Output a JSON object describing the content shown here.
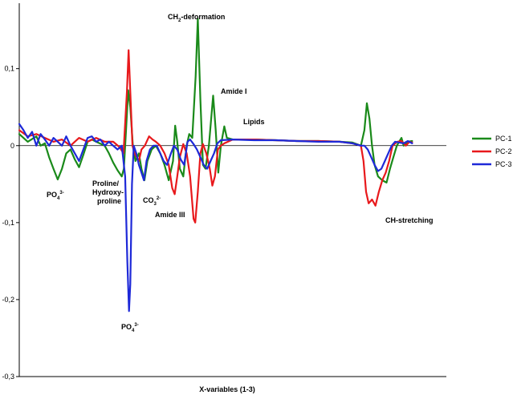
{
  "chart_data": {
    "type": "line",
    "xlabel": "X-variables (1-3)",
    "ylabel": "",
    "title": "",
    "ylim": [
      -0.3,
      0.18
    ],
    "yticks": [
      {
        "value": 0.1,
        "label": "0,1"
      },
      {
        "value": 0,
        "label": "0"
      },
      {
        "value": -0.1,
        "label": "-0,1"
      },
      {
        "value": -0.2,
        "label": "-0,2"
      },
      {
        "value": -0.3,
        "label": "-0,3"
      }
    ],
    "xlim": [
      0,
      100
    ],
    "grid": false,
    "legend_position": "right",
    "series": [
      {
        "name": "PC-1",
        "color": "#1a8a1a",
        "points": [
          [
            0,
            0.015
          ],
          [
            2,
            0.005
          ],
          [
            4,
            0.012
          ],
          [
            5,
            0.0
          ],
          [
            6,
            0.003
          ],
          [
            7,
            -0.015
          ],
          [
            8,
            -0.03
          ],
          [
            9,
            -0.044
          ],
          [
            10,
            -0.03
          ],
          [
            11,
            -0.01
          ],
          [
            12,
            -0.005
          ],
          [
            13,
            -0.018
          ],
          [
            14,
            -0.028
          ],
          [
            15,
            -0.012
          ],
          [
            16,
            0.005
          ],
          [
            17,
            0.008
          ],
          [
            18,
            0.005
          ],
          [
            20,
            0.0
          ],
          [
            21,
            -0.01
          ],
          [
            22,
            -0.022
          ],
          [
            23,
            -0.032
          ],
          [
            24,
            -0.04
          ],
          [
            24.5,
            -0.03
          ],
          [
            25,
            0.02
          ],
          [
            25.5,
            0.072
          ],
          [
            26,
            0.05
          ],
          [
            26.6,
            0.0
          ],
          [
            27.2,
            -0.02
          ],
          [
            28,
            -0.01
          ],
          [
            28.6,
            -0.03
          ],
          [
            29.3,
            -0.045
          ],
          [
            30,
            -0.02
          ],
          [
            31,
            -0.005
          ],
          [
            32,
            0.0
          ],
          [
            33,
            -0.01
          ],
          [
            34,
            -0.025
          ],
          [
            35,
            -0.045
          ],
          [
            36,
            -0.02
          ],
          [
            36.5,
            0.026
          ],
          [
            37,
            0.005
          ],
          [
            37.6,
            -0.03
          ],
          [
            38.4,
            -0.04
          ],
          [
            39.2,
            0.0
          ],
          [
            39.8,
            0.015
          ],
          [
            40.5,
            0.01
          ],
          [
            41.3,
            0.09
          ],
          [
            41.8,
            0.165
          ],
          [
            42.4,
            0.06
          ],
          [
            43,
            -0.025
          ],
          [
            43.6,
            -0.03
          ],
          [
            44.4,
            0.0
          ],
          [
            45.4,
            0.065
          ],
          [
            46,
            0.02
          ],
          [
            46.6,
            -0.035
          ],
          [
            47.2,
            0.0
          ],
          [
            48,
            0.025
          ],
          [
            48.6,
            0.01
          ],
          [
            50,
            0.008
          ],
          [
            55,
            0.008
          ],
          [
            60,
            0.007
          ],
          [
            65,
            0.006
          ],
          [
            70,
            0.006
          ],
          [
            75,
            0.005
          ],
          [
            78,
            0.004
          ],
          [
            80,
            0.0
          ],
          [
            80.8,
            0.02
          ],
          [
            81.4,
            0.055
          ],
          [
            82,
            0.035
          ],
          [
            82.6,
            0.0
          ],
          [
            83.2,
            -0.025
          ],
          [
            84,
            -0.04
          ],
          [
            85,
            -0.045
          ],
          [
            86,
            -0.048
          ],
          [
            86.8,
            -0.03
          ],
          [
            87.6,
            -0.015
          ],
          [
            88.4,
            0.0
          ],
          [
            89.5,
            0.01
          ],
          [
            90,
            0.0
          ],
          [
            91,
            0.005
          ],
          [
            92,
            0.006
          ]
        ]
      },
      {
        "name": "PC-2",
        "color": "#e8191c",
        "points": [
          [
            0,
            0.02
          ],
          [
            2,
            0.012
          ],
          [
            4,
            0.015
          ],
          [
            6,
            0.01
          ],
          [
            8,
            0.005
          ],
          [
            10,
            0.008
          ],
          [
            12,
            0.0
          ],
          [
            14,
            0.01
          ],
          [
            16,
            0.005
          ],
          [
            18,
            0.01
          ],
          [
            20,
            0.005
          ],
          [
            22,
            0.005
          ],
          [
            23.5,
            -0.002
          ],
          [
            24.4,
            -0.01
          ],
          [
            25.2,
            0.07
          ],
          [
            25.6,
            0.124
          ],
          [
            26,
            0.07
          ],
          [
            26.5,
            0.0
          ],
          [
            27,
            -0.01
          ],
          [
            28,
            -0.02
          ],
          [
            28.6,
            -0.005
          ],
          [
            29.4,
            0.0
          ],
          [
            30.4,
            0.012
          ],
          [
            31.2,
            0.008
          ],
          [
            32,
            0.005
          ],
          [
            33,
            0.0
          ],
          [
            34,
            -0.01
          ],
          [
            35,
            -0.025
          ],
          [
            35.8,
            -0.055
          ],
          [
            36.4,
            -0.063
          ],
          [
            37,
            -0.04
          ],
          [
            37.6,
            -0.015
          ],
          [
            38.4,
            0.002
          ],
          [
            39.2,
            -0.01
          ],
          [
            40,
            -0.04
          ],
          [
            40.8,
            -0.095
          ],
          [
            41.2,
            -0.1
          ],
          [
            41.8,
            -0.06
          ],
          [
            42.4,
            -0.01
          ],
          [
            43,
            0.002
          ],
          [
            43.8,
            -0.01
          ],
          [
            44.6,
            -0.03
          ],
          [
            45.2,
            -0.052
          ],
          [
            45.8,
            -0.04
          ],
          [
            46.5,
            -0.005
          ],
          [
            47.2,
            0.0
          ],
          [
            48,
            0.003
          ],
          [
            50,
            0.008
          ],
          [
            55,
            0.008
          ],
          [
            60,
            0.007
          ],
          [
            65,
            0.006
          ],
          [
            70,
            0.006
          ],
          [
            75,
            0.005
          ],
          [
            78,
            0.003
          ],
          [
            80,
            0.0
          ],
          [
            80.6,
            -0.02
          ],
          [
            81.2,
            -0.06
          ],
          [
            81.8,
            -0.075
          ],
          [
            82.6,
            -0.07
          ],
          [
            83.4,
            -0.078
          ],
          [
            84.2,
            -0.06
          ],
          [
            85,
            -0.045
          ],
          [
            85.8,
            -0.035
          ],
          [
            86.6,
            -0.02
          ],
          [
            87.4,
            0.0
          ],
          [
            88.5,
            0.005
          ],
          [
            89.5,
            0.006
          ],
          [
            90.5,
            0.0
          ],
          [
            91.4,
            0.005
          ],
          [
            92,
            0.004
          ]
        ]
      },
      {
        "name": "PC-3",
        "color": "#1e29d8",
        "points": [
          [
            0,
            0.028
          ],
          [
            1,
            0.02
          ],
          [
            2,
            0.01
          ],
          [
            3,
            0.018
          ],
          [
            4,
            0.0
          ],
          [
            5,
            0.015
          ],
          [
            6,
            0.008
          ],
          [
            7,
            0.0
          ],
          [
            8,
            0.01
          ],
          [
            9,
            0.005
          ],
          [
            10,
            0.0
          ],
          [
            11,
            0.012
          ],
          [
            12,
            0.0
          ],
          [
            13,
            -0.01
          ],
          [
            14,
            -0.02
          ],
          [
            15,
            -0.005
          ],
          [
            16,
            0.01
          ],
          [
            17,
            0.012
          ],
          [
            18,
            0.005
          ],
          [
            19,
            0.008
          ],
          [
            20,
            0.0
          ],
          [
            21,
            0.005
          ],
          [
            22,
            0.0
          ],
          [
            23,
            -0.005
          ],
          [
            24,
            0.0
          ],
          [
            24.8,
            -0.04
          ],
          [
            25.3,
            -0.15
          ],
          [
            25.7,
            -0.215
          ],
          [
            26,
            -0.18
          ],
          [
            26.4,
            -0.05
          ],
          [
            26.8,
            0.0
          ],
          [
            27.4,
            -0.01
          ],
          [
            28,
            -0.025
          ],
          [
            28.6,
            -0.035
          ],
          [
            29.2,
            -0.045
          ],
          [
            29.8,
            -0.02
          ],
          [
            30.6,
            -0.005
          ],
          [
            31.4,
            0.0
          ],
          [
            32.2,
            0.0
          ],
          [
            33,
            -0.01
          ],
          [
            33.8,
            -0.02
          ],
          [
            34.6,
            -0.025
          ],
          [
            35.4,
            -0.012
          ],
          [
            36.2,
            0.0
          ],
          [
            37,
            -0.005
          ],
          [
            37.8,
            -0.018
          ],
          [
            38.6,
            -0.025
          ],
          [
            39.4,
            0.005
          ],
          [
            40,
            0.008
          ],
          [
            40.8,
            0.002
          ],
          [
            41.6,
            -0.005
          ],
          [
            42.4,
            -0.015
          ],
          [
            43.2,
            -0.025
          ],
          [
            44,
            -0.03
          ],
          [
            44.8,
            -0.02
          ],
          [
            45.6,
            -0.01
          ],
          [
            46.4,
            0.003
          ],
          [
            47.2,
            0.007
          ],
          [
            50,
            0.008
          ],
          [
            55,
            0.007
          ],
          [
            60,
            0.007
          ],
          [
            65,
            0.006
          ],
          [
            70,
            0.005
          ],
          [
            75,
            0.005
          ],
          [
            78,
            0.003
          ],
          [
            80,
            0.0
          ],
          [
            80.8,
            0.0
          ],
          [
            81.6,
            -0.005
          ],
          [
            82.4,
            -0.015
          ],
          [
            83.2,
            -0.025
          ],
          [
            84,
            -0.033
          ],
          [
            84.8,
            -0.03
          ],
          [
            85.6,
            -0.02
          ],
          [
            86.4,
            -0.01
          ],
          [
            87.2,
            0.0
          ],
          [
            88,
            0.005
          ],
          [
            89,
            0.004
          ],
          [
            90,
            0.003
          ],
          [
            91,
            0.006
          ],
          [
            92,
            0.003
          ]
        ]
      }
    ],
    "annotations": [
      {
        "id": "po4-a",
        "text": "PO4",
        "sup": "3-",
        "x": 5,
        "y": -0.055
      },
      {
        "id": "proline-1",
        "text": "Proline/",
        "x": 17.5,
        "y": -0.04
      },
      {
        "id": "proline-2",
        "text": "Hydroxy-",
        "x": 17.5,
        "y": -0.051
      },
      {
        "id": "proline-3",
        "text": "proline",
        "x": 18.6,
        "y": -0.062
      },
      {
        "id": "co3",
        "text": "CO3",
        "sup": "2-",
        "x": 29.5,
        "y": -0.061
      },
      {
        "id": "amide-iii",
        "text": "Amide III",
        "x": 31.5,
        "y": -0.081
      },
      {
        "id": "po4-b",
        "text": "PO4",
        "sup": "3-",
        "x": 24.4,
        "y": -0.235
      },
      {
        "id": "ch2",
        "text": "CH2-deformation",
        "sub": "2",
        "x": 35.5,
        "y": 0.178
      },
      {
        "id": "amide-i",
        "text": "Amide I",
        "x": 42.4,
        "y": 0.078
      },
      {
        "id": "lipids",
        "text": "Lipids",
        "x": 46.2,
        "y": 0.036
      },
      {
        "id": "ch-stretch",
        "text": "CH-stretching",
        "x": 77.5,
        "y": -0.092
      }
    ]
  },
  "legend": [
    {
      "label": "PC-1",
      "color": "#1a8a1a"
    },
    {
      "label": "PC-2",
      "color": "#e8191c"
    },
    {
      "label": "PC-3",
      "color": "#1e29d8"
    }
  ]
}
